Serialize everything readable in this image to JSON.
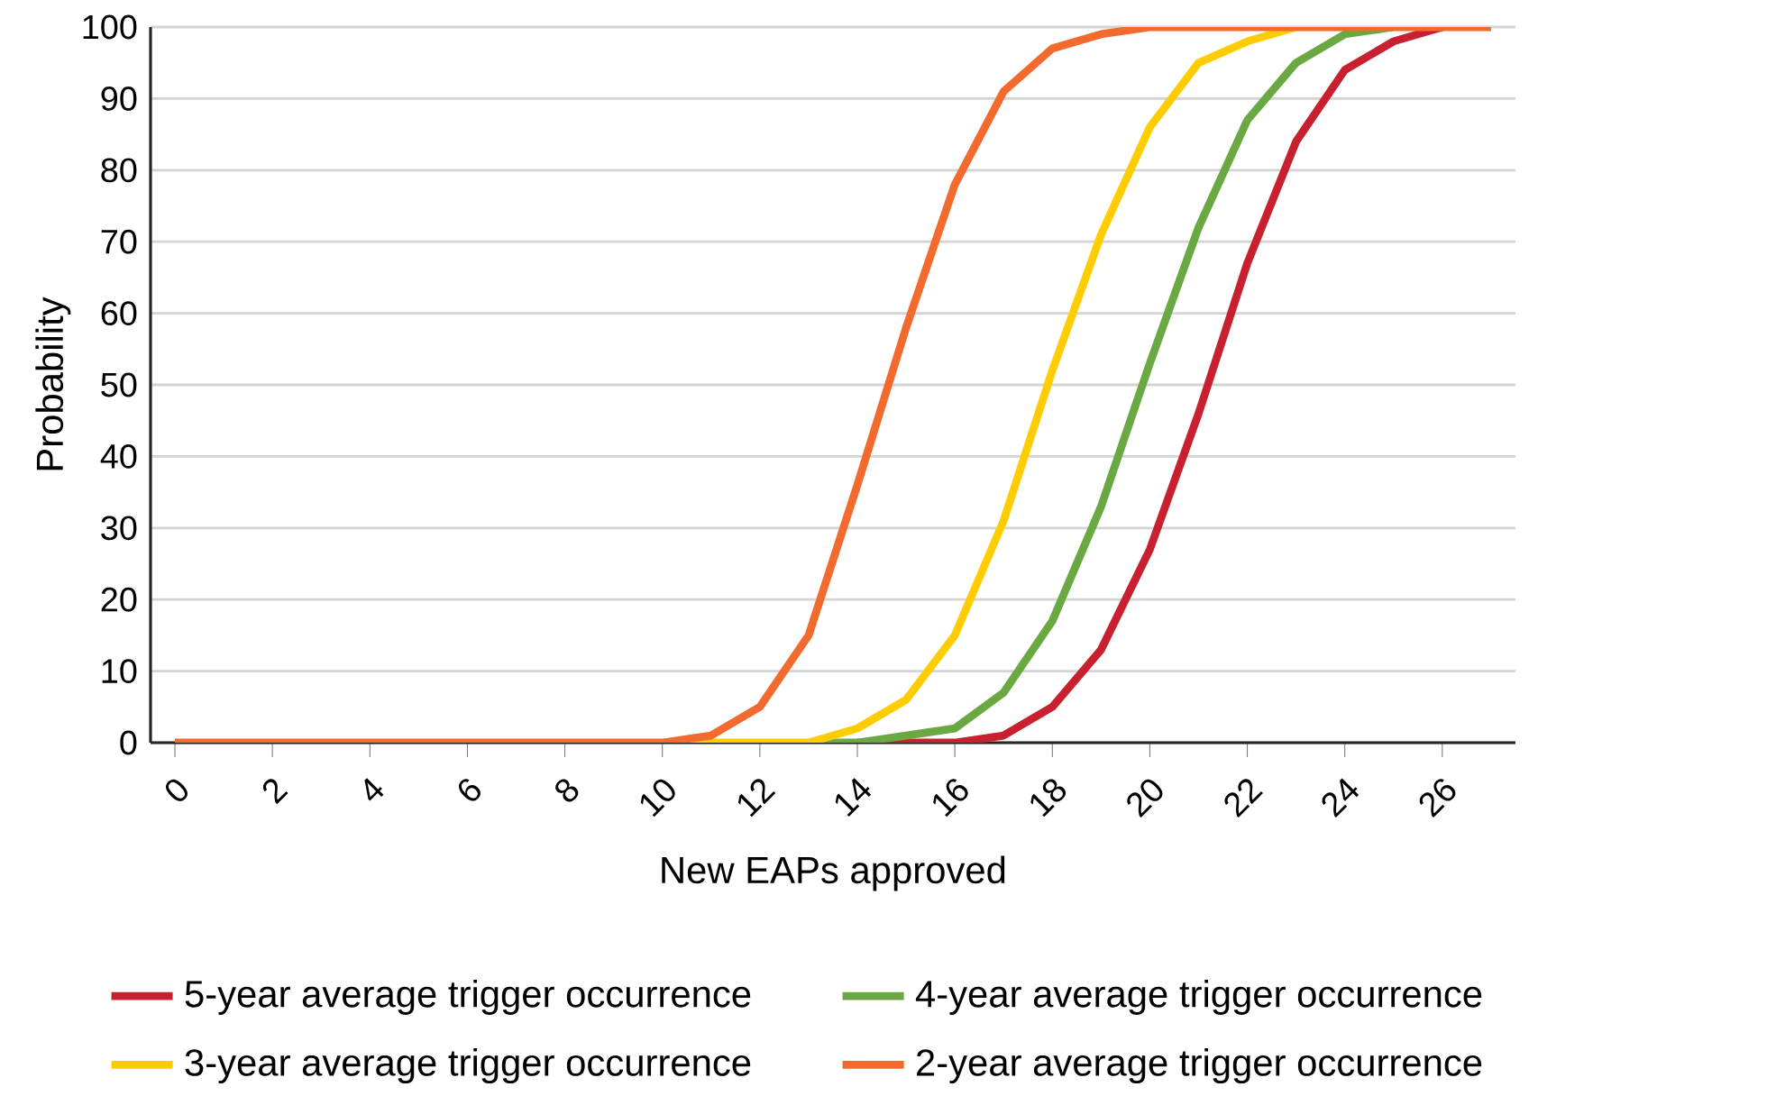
{
  "chart_data": {
    "type": "line",
    "xlabel": "New EAPs approved",
    "ylabel": "Probability",
    "x": [
      0,
      1,
      2,
      3,
      4,
      5,
      6,
      7,
      8,
      9,
      10,
      11,
      12,
      13,
      14,
      15,
      16,
      17,
      18,
      19,
      20,
      21,
      22,
      23,
      24,
      25,
      26,
      27
    ],
    "series": [
      {
        "name": "5-year average trigger occurrence",
        "color": "#c8202f",
        "values": [
          null,
          null,
          null,
          null,
          null,
          null,
          null,
          null,
          null,
          null,
          null,
          null,
          null,
          null,
          0,
          0,
          0,
          1,
          5,
          13,
          27,
          46,
          67,
          84,
          94,
          98,
          100,
          null
        ]
      },
      {
        "name": "4-year average trigger occurrence",
        "color": "#6aa842",
        "values": [
          null,
          null,
          null,
          null,
          null,
          null,
          null,
          null,
          null,
          null,
          null,
          null,
          null,
          0,
          0,
          1,
          2,
          7,
          17,
          33,
          53,
          72,
          87,
          95,
          99,
          100,
          null,
          null
        ]
      },
      {
        "name": "3-year average trigger occurrence",
        "color": "#ffcc00",
        "values": [
          null,
          null,
          null,
          null,
          null,
          null,
          null,
          null,
          null,
          null,
          0,
          0,
          0,
          0,
          2,
          6,
          15,
          31,
          52,
          71,
          86,
          95,
          98,
          100,
          null,
          null,
          null,
          null
        ]
      },
      {
        "name": "2-year average trigger occurrence",
        "color": "#f26a2e",
        "values": [
          0,
          0,
          0,
          0,
          0,
          0,
          0,
          0,
          0,
          0,
          0,
          1,
          5,
          15,
          36,
          58,
          78,
          91,
          97,
          99,
          100,
          100,
          100,
          100,
          100,
          100,
          100,
          100
        ]
      }
    ],
    "xlim": [
      -0.5,
      27.5
    ],
    "ylim": [
      0,
      100
    ],
    "xticks": [
      0,
      2,
      4,
      6,
      8,
      10,
      12,
      14,
      16,
      18,
      20,
      22,
      24,
      26
    ],
    "yticks": [
      0,
      10,
      20,
      30,
      40,
      50,
      60,
      70,
      80,
      90,
      100
    ],
    "grid": "y",
    "legend": "bottom"
  }
}
